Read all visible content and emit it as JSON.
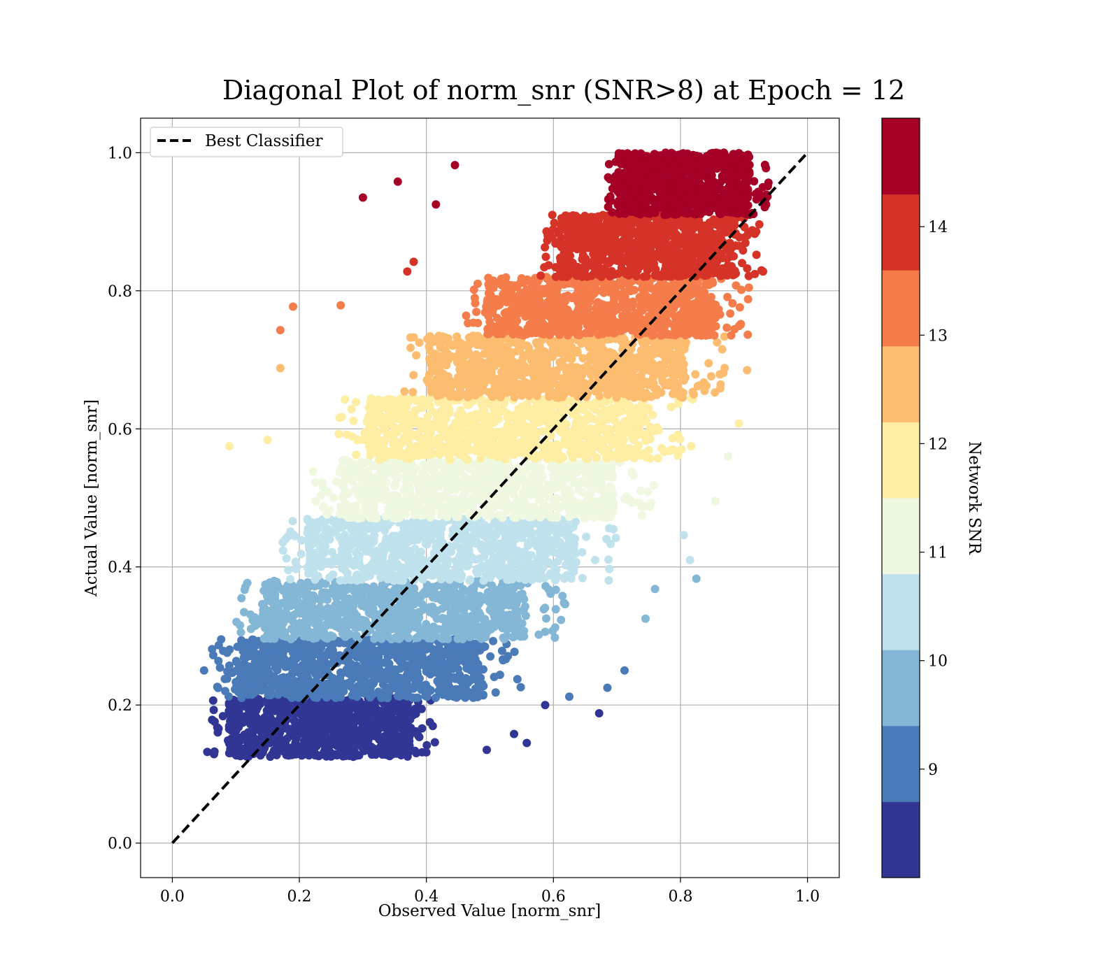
{
  "chart_data": {
    "type": "scatter",
    "title": "Diagonal Plot of norm_snr (SNR>8) at Epoch = 12",
    "xlabel": "Observed Value [norm_snr]",
    "ylabel": "Actual Value [norm_snr]",
    "xlim": [
      -0.05,
      1.05
    ],
    "ylim": [
      -0.05,
      1.05
    ],
    "x_ticks": [
      "0.0",
      "0.2",
      "0.4",
      "0.6",
      "0.8",
      "1.0"
    ],
    "y_ticks": [
      "0.0",
      "0.2",
      "0.4",
      "0.6",
      "0.8",
      "1.0"
    ],
    "grid": true,
    "legend": {
      "placement": "upper-left",
      "entries": [
        "Best Classifier"
      ]
    },
    "reference_line": {
      "name": "Best Classifier",
      "style": "dashed",
      "color": "#000000",
      "x": [
        0.0,
        1.0
      ],
      "y": [
        0.0,
        1.0
      ]
    },
    "colorbar": {
      "label": "Network SNR",
      "range": [
        8,
        15
      ],
      "ticks": [
        "9",
        "10",
        "11",
        "12",
        "13",
        "14"
      ],
      "colors": [
        "#313695",
        "#4a7ab7",
        "#84b7d6",
        "#bfe2ed",
        "#eff8e1",
        "#fdeea3",
        "#fdbd71",
        "#f47d4b",
        "#d63328",
        "#a50026"
      ]
    },
    "bands": [
      {
        "snr_min": 8.0,
        "snr_max": 8.7,
        "y_range": [
          0.125,
          0.21
        ],
        "x_range": [
          0.06,
          0.42
        ],
        "x_center_of_density": 0.22,
        "color": "#313695"
      },
      {
        "snr_min": 8.7,
        "snr_max": 9.4,
        "y_range": [
          0.21,
          0.295
        ],
        "x_range": [
          0.06,
          0.55
        ],
        "x_center_of_density": 0.3,
        "color": "#4a7ab7"
      },
      {
        "snr_min": 9.4,
        "snr_max": 10.1,
        "y_range": [
          0.295,
          0.38
        ],
        "x_range": [
          0.1,
          0.62
        ],
        "x_center_of_density": 0.36,
        "color": "#84b7d6"
      },
      {
        "snr_min": 10.1,
        "snr_max": 10.8,
        "y_range": [
          0.38,
          0.47
        ],
        "x_range": [
          0.17,
          0.7
        ],
        "x_center_of_density": 0.44,
        "color": "#bfe2ed"
      },
      {
        "snr_min": 10.8,
        "snr_max": 11.5,
        "y_range": [
          0.47,
          0.555
        ],
        "x_range": [
          0.22,
          0.76
        ],
        "x_center_of_density": 0.5,
        "color": "#eff8e1"
      },
      {
        "snr_min": 11.5,
        "snr_max": 12.2,
        "y_range": [
          0.555,
          0.645
        ],
        "x_range": [
          0.26,
          0.82
        ],
        "x_center_of_density": 0.56,
        "color": "#fdeea3"
      },
      {
        "snr_min": 12.2,
        "snr_max": 12.9,
        "y_range": [
          0.645,
          0.735
        ],
        "x_range": [
          0.36,
          0.87
        ],
        "x_center_of_density": 0.63,
        "color": "#fdbd71"
      },
      {
        "snr_min": 12.9,
        "snr_max": 13.6,
        "y_range": [
          0.735,
          0.82
        ],
        "x_range": [
          0.46,
          0.91
        ],
        "x_center_of_density": 0.7,
        "color": "#f47d4b"
      },
      {
        "snr_min": 13.6,
        "snr_max": 14.3,
        "y_range": [
          0.82,
          0.91
        ],
        "x_range": [
          0.58,
          0.93
        ],
        "x_center_of_density": 0.76,
        "color": "#d63328"
      },
      {
        "snr_min": 14.3,
        "snr_max": 15.0,
        "y_range": [
          0.91,
          1.0
        ],
        "x_range": [
          0.68,
          0.94
        ],
        "x_center_of_density": 0.81,
        "color": "#a50026"
      }
    ],
    "outliers": [
      {
        "x": 0.3,
        "y": 0.935,
        "color": "#a50026"
      },
      {
        "x": 0.355,
        "y": 0.958,
        "color": "#a50026"
      },
      {
        "x": 0.415,
        "y": 0.925,
        "color": "#a50026"
      },
      {
        "x": 0.445,
        "y": 0.982,
        "color": "#a50026"
      },
      {
        "x": 0.37,
        "y": 0.828,
        "color": "#d63328"
      },
      {
        "x": 0.38,
        "y": 0.842,
        "color": "#d63328"
      },
      {
        "x": 0.19,
        "y": 0.777,
        "color": "#f47d4b"
      },
      {
        "x": 0.17,
        "y": 0.743,
        "color": "#f47d4b"
      },
      {
        "x": 0.265,
        "y": 0.779,
        "color": "#f47d4b"
      },
      {
        "x": 0.17,
        "y": 0.688,
        "color": "#fdbd71"
      },
      {
        "x": 0.09,
        "y": 0.575,
        "color": "#fdeea3"
      },
      {
        "x": 0.15,
        "y": 0.584,
        "color": "#fdeea3"
      },
      {
        "x": 0.825,
        "y": 0.383,
        "color": "#84b7d6"
      },
      {
        "x": 0.76,
        "y": 0.368,
        "color": "#84b7d6"
      },
      {
        "x": 0.745,
        "y": 0.325,
        "color": "#84b7d6"
      },
      {
        "x": 0.815,
        "y": 0.41,
        "color": "#bfe2ed"
      },
      {
        "x": 0.805,
        "y": 0.446,
        "color": "#bfe2ed"
      },
      {
        "x": 0.712,
        "y": 0.25,
        "color": "#4a7ab7"
      },
      {
        "x": 0.685,
        "y": 0.225,
        "color": "#4a7ab7"
      },
      {
        "x": 0.625,
        "y": 0.212,
        "color": "#4a7ab7"
      },
      {
        "x": 0.672,
        "y": 0.188,
        "color": "#313695"
      },
      {
        "x": 0.587,
        "y": 0.2,
        "color": "#313695"
      },
      {
        "x": 0.538,
        "y": 0.158,
        "color": "#313695"
      },
      {
        "x": 0.558,
        "y": 0.145,
        "color": "#313695"
      },
      {
        "x": 0.495,
        "y": 0.135,
        "color": "#313695"
      },
      {
        "x": 0.055,
        "y": 0.132,
        "color": "#313695"
      },
      {
        "x": 0.05,
        "y": 0.25,
        "color": "#4a7ab7"
      },
      {
        "x": 0.93,
        "y": 0.828,
        "color": "#d63328"
      },
      {
        "x": 0.905,
        "y": 0.685,
        "color": "#fdbd71"
      },
      {
        "x": 0.892,
        "y": 0.608,
        "color": "#fdeea3"
      },
      {
        "x": 0.875,
        "y": 0.56,
        "color": "#eff8e1"
      },
      {
        "x": 0.855,
        "y": 0.495,
        "color": "#eff8e1"
      }
    ]
  }
}
